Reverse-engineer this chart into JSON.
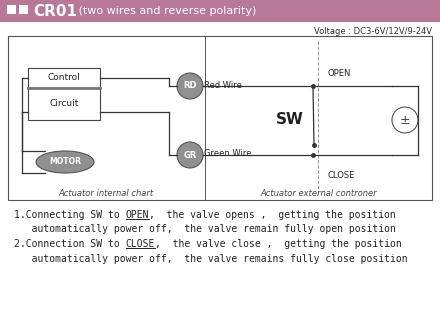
{
  "bg_color": "#ffffff",
  "header_bg": "#b87898",
  "sq_color": "#ffffff",
  "header_text": "CR01",
  "header_sub": " (two wires and reverse polarity)",
  "voltage_text": "Voltage : DC3-6V/12V/9-24V",
  "motor_label": "MOTOR",
  "control_label1": "Control",
  "control_label2": "Circuit",
  "actuator_internal": "Actuator internal chart",
  "actuator_external": "Actuator external controner",
  "rd_label": "RD",
  "gr_label": "GR",
  "red_wire": "Red Wire",
  "green_wire": "Green Wire",
  "sw_label": "SW",
  "open_label": "OPEN",
  "close_label": "CLOSE",
  "ellipse_color": "#909090",
  "wire_color": "#333333",
  "text_color": "#222222"
}
